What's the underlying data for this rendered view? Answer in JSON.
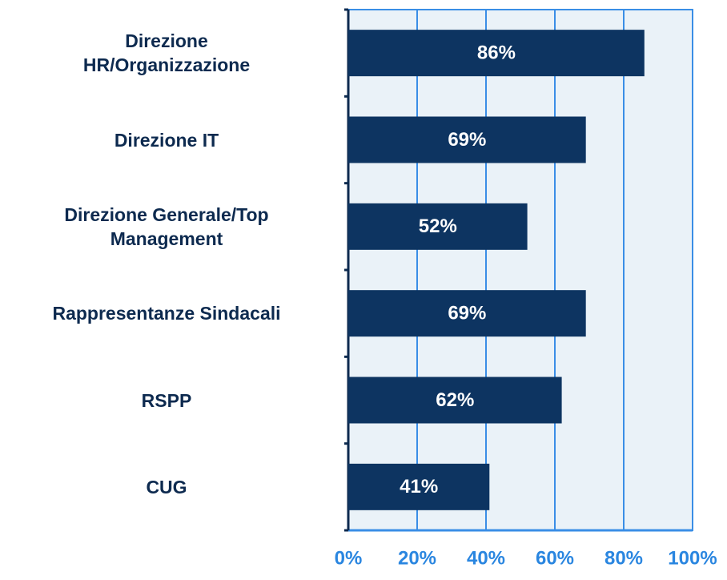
{
  "chart_data": {
    "type": "bar",
    "orientation": "horizontal",
    "categories": [
      "Direzione\nHR/Organizzazione",
      "Direzione IT",
      "Direzione Generale/Top\nManagement",
      "Rappresentanze Sindacali",
      "RSPP",
      "CUG"
    ],
    "values": [
      86,
      69,
      52,
      69,
      62,
      41
    ],
    "value_labels": [
      "86%",
      "69%",
      "52%",
      "69%",
      "62%",
      "41%"
    ],
    "color": "#0d3461",
    "xlim": [
      0,
      100
    ],
    "xticks": [
      {
        "value": 0,
        "label": "0%"
      },
      {
        "value": 20,
        "label": "20%"
      },
      {
        "value": 40,
        "label": "40%"
      },
      {
        "value": 60,
        "label": "60%"
      },
      {
        "value": 80,
        "label": "80%"
      },
      {
        "value": 100,
        "label": "100%"
      }
    ],
    "grid": true
  }
}
